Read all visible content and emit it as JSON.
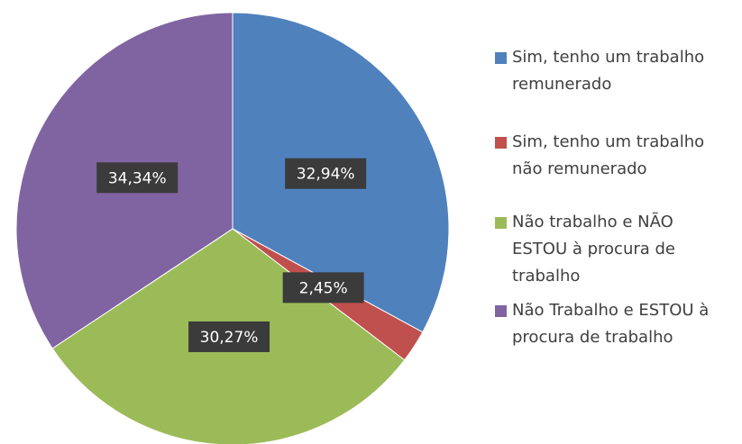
{
  "chart_data": {
    "type": "pie",
    "categories": [
      "Sim, tenho um trabalho remunerado",
      "Sim, tenho um trabalho não remunerado",
      "Não trabalho e NÃO ESTOU à procura de trabalho",
      "Não Trabalho e ESTOU à procura de trabalho"
    ],
    "values": [
      32.94,
      2.45,
      30.27,
      34.34
    ],
    "value_labels": [
      "32,94%",
      "2,45%",
      "30,27%",
      "34,34%"
    ],
    "colors": [
      "#4f81bd",
      "#c0504d",
      "#9bbb59",
      "#8064a2"
    ],
    "legend": "right"
  }
}
